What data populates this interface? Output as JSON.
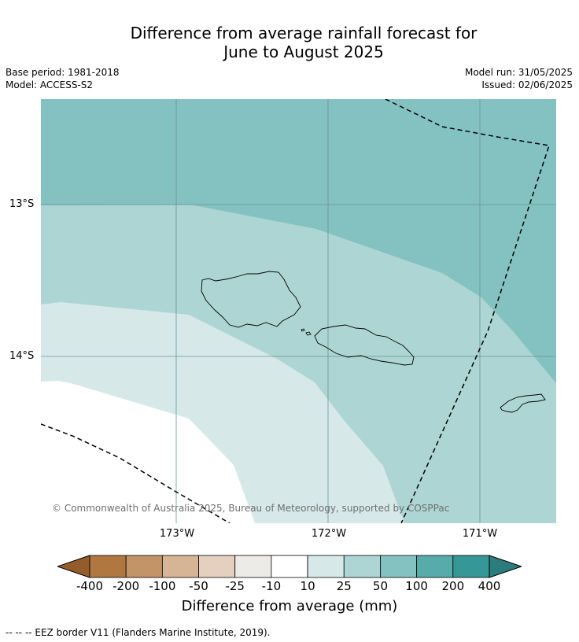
{
  "title_line1": "Difference from average rainfall forecast for",
  "title_line2": "June to August 2025",
  "base_period": "Base period: 1981-2018",
  "model": "Model: ACCESS-S2",
  "model_run": "Model run: 31/05/2025",
  "issued": "Issued: 02/06/2025",
  "copyright": "© Commonwealth of Australia 2025, Bureau of Meteorology, supported by COSPPac",
  "lat_labels": [
    "13°S",
    "14°S"
  ],
  "lon_labels": [
    "173°W",
    "172°W",
    "171°W"
  ],
  "colorbar": {
    "title": "Difference from average (mm)",
    "ticks": [
      "-400",
      "-200",
      "-100",
      "-50",
      "-25",
      "-10",
      "10",
      "25",
      "50",
      "100",
      "200",
      "400"
    ],
    "colors": [
      "#955c2b",
      "#b07740",
      "#c29468",
      "#d6b496",
      "#e5d0c0",
      "#ecebe8",
      "#ffffff",
      "#d6e9e8",
      "#acd5d4",
      "#84c1c1",
      "#58abab",
      "#369797",
      "#2b7c7c"
    ]
  },
  "map_colors": {
    "band_100": "#84c1c1",
    "band_50": "#acd5d4",
    "band_25": "#d6e9e8",
    "band_10": "#ffffff"
  },
  "footnote": "--  --  -- EEZ border V11 (Flanders Marine Institute, 2019)."
}
